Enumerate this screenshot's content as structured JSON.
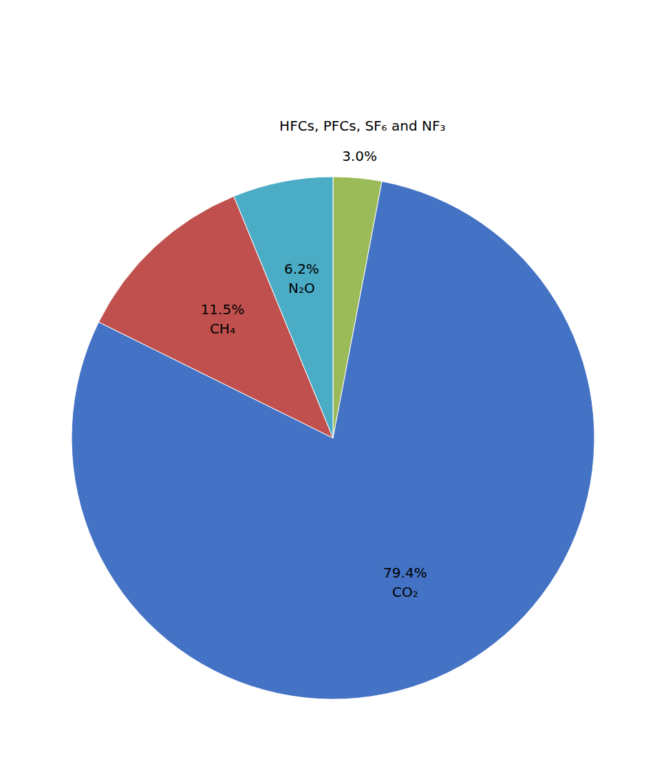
{
  "chart_data": {
    "type": "pie",
    "categories": [
      "HFCs, PFCs, SF₆ and NF₃",
      "CO₂",
      "CH₄",
      "N₂O"
    ],
    "values": [
      3.0,
      79.4,
      11.5,
      6.2
    ],
    "value_labels": [
      "3.0%",
      "79.4%",
      "11.5%",
      "6.2%"
    ],
    "colors": [
      "#9BBB59",
      "#4472C4",
      "#C0504D",
      "#4BACC6"
    ],
    "data_labels": true
  }
}
